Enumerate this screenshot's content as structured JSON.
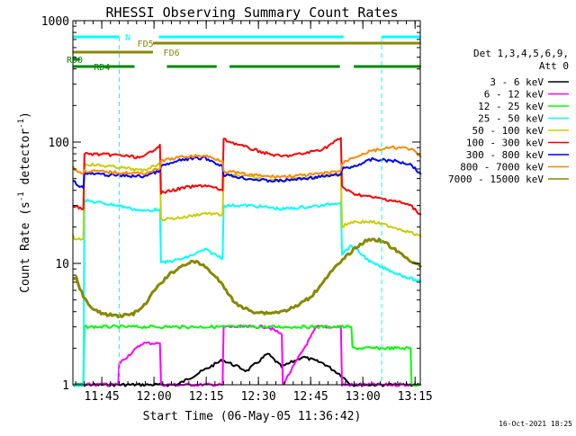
{
  "chart_data": {
    "type": "line",
    "title": "RHESSI Observing Summary Count Rates",
    "xlabel": "Start Time (06-May-05 11:36:42)",
    "ylabel": "Count Rate (s",
    "ylabel_sup": "-1",
    "ylabel_tail": " detector",
    "ylabel_sup2": "-1",
    "ylabel_close": ")",
    "yscale": "log",
    "ylim": [
      1,
      1000
    ],
    "xlim": [
      "11:36:42",
      "13:16:30"
    ],
    "y_ticks": [
      {
        "value": 1,
        "label": "1"
      },
      {
        "value": 10,
        "label": "10"
      },
      {
        "value": 100,
        "label": "100"
      },
      {
        "value": 1000,
        "label": "1000"
      }
    ],
    "x_ticks": [
      {
        "value": 8.3,
        "label": "11:45"
      },
      {
        "value": 23.3,
        "label": "12:00"
      },
      {
        "value": 38.3,
        "label": "12:15"
      },
      {
        "value": 53.3,
        "label": "12:30"
      },
      {
        "value": 68.3,
        "label": "12:45"
      },
      {
        "value": 83.3,
        "label": "13:00"
      },
      {
        "value": 98.3,
        "label": "13:15"
      }
    ],
    "legend": {
      "header": [
        "Det 1,3,4,5,6,9,",
        "Att 0"
      ],
      "position": "right"
    },
    "series": [
      {
        "name": "3 - 6 keV",
        "color": "#000000",
        "x": [
          0,
          3,
          3.3,
          20,
          30,
          43,
          50,
          56,
          60,
          66,
          72,
          77,
          80,
          80.3,
          100
        ],
        "y": [
          1,
          1,
          1,
          1,
          1,
          1.6,
          1.3,
          1.8,
          1.4,
          1.7,
          1.5,
          1.2,
          1,
          1,
          1
        ]
      },
      {
        "name": "6 - 12 keV",
        "color": "#ff00ff",
        "x": [
          0,
          3,
          13,
          13.3,
          20,
          25,
          25.3,
          30,
          43,
          43.3,
          56,
          60,
          60.3,
          70,
          77,
          77.3,
          100
        ],
        "y": [
          1,
          1,
          1,
          1.5,
          2.2,
          2.2,
          1,
          1,
          1,
          3,
          3,
          2.6,
          1,
          3,
          3,
          1,
          1
        ]
      },
      {
        "name": "12 - 25 keV",
        "color": "#00ff00",
        "x": [
          0,
          3,
          3.3,
          25,
          30,
          43,
          49,
          56,
          60,
          66,
          72,
          77,
          80,
          80.3,
          97,
          97.3,
          100
        ],
        "y": [
          1,
          1,
          3,
          3,
          3,
          3,
          3,
          3,
          3,
          3,
          3,
          3,
          3,
          2,
          2,
          1,
          1
        ]
      },
      {
        "name": "25 - 50 keV",
        "color": "#00ffff",
        "x": [
          0,
          3,
          3.3,
          13,
          20,
          25,
          25.3,
          32,
          38,
          43,
          43.3,
          50,
          56,
          60,
          66,
          72,
          77,
          77.3,
          80,
          86,
          92,
          97,
          100
        ],
        "y": [
          1,
          1,
          33,
          30,
          27,
          28,
          10,
          11,
          13,
          11,
          30,
          30,
          29,
          28,
          29,
          30,
          32,
          12,
          14,
          10,
          8.5,
          7.5,
          7
        ]
      },
      {
        "name": "50 - 100 keV",
        "color": "#cccc00",
        "x": [
          0,
          0.5,
          3,
          3.3,
          13,
          20,
          25,
          25.3,
          32,
          38,
          43,
          43.3,
          50,
          56,
          60,
          66,
          72,
          77,
          77.3,
          80,
          86,
          92,
          97,
          100
        ],
        "y": [
          17,
          16,
          16,
          66,
          62,
          58,
          67,
          23,
          24,
          26,
          25,
          53,
          52,
          49,
          48,
          50,
          52,
          55,
          20,
          22,
          22,
          20,
          18,
          16.5
        ]
      },
      {
        "name": "100 - 300 keV",
        "color": "#ff0000",
        "x": [
          0,
          3,
          3.3,
          13,
          20,
          25,
          25.3,
          32,
          38,
          43,
          43.3,
          50,
          56,
          60,
          66,
          72,
          77,
          77.3,
          80,
          86,
          92,
          97,
          100
        ],
        "y": [
          30,
          28,
          80,
          78,
          74,
          95,
          38,
          42,
          44,
          40,
          105,
          90,
          80,
          76,
          80,
          88,
          108,
          43,
          38,
          35,
          33,
          30,
          25
        ]
      },
      {
        "name": "300 - 800 keV",
        "color": "#0000ff",
        "x": [
          0,
          1,
          3,
          3.3,
          13,
          20,
          25,
          25.3,
          32,
          38,
          43,
          43.3,
          50,
          56,
          60,
          66,
          72,
          77,
          77.3,
          80,
          86,
          92,
          97,
          100
        ],
        "y": [
          49,
          45,
          42,
          55,
          53,
          52,
          58,
          63,
          72,
          74,
          63,
          54,
          50,
          48,
          48,
          50,
          52,
          54,
          60,
          62,
          72,
          70,
          66,
          54
        ]
      },
      {
        "name": "800 - 7000 keV",
        "color": "#ff8800",
        "x": [
          0,
          1,
          3,
          3.3,
          13,
          20,
          25,
          25.3,
          32,
          38,
          43,
          43.3,
          50,
          56,
          60,
          66,
          72,
          77,
          77.3,
          80,
          86,
          92,
          97,
          100
        ],
        "y": [
          62,
          58,
          55,
          58,
          56,
          55,
          60,
          70,
          76,
          77,
          70,
          58,
          54,
          52,
          52,
          53,
          55,
          58,
          66,
          74,
          85,
          90,
          88,
          75
        ]
      },
      {
        "name": "7000 - 15000 keV",
        "color": "#888800",
        "x": [
          0,
          1,
          2,
          3,
          5,
          9,
          13,
          17,
          20,
          22,
          24,
          26,
          28,
          30,
          32,
          34,
          36,
          38,
          40,
          42,
          44,
          46,
          48,
          52,
          56,
          60,
          64,
          68,
          70,
          72,
          74,
          76,
          78,
          80,
          82,
          84,
          86,
          88,
          90,
          92,
          94,
          96,
          98,
          100
        ],
        "y": [
          7.5,
          7.5,
          6.3,
          5.4,
          4.3,
          3.8,
          3.7,
          3.8,
          4.3,
          5.2,
          6.3,
          7.2,
          8.2,
          9.0,
          9.8,
          10.3,
          10.1,
          9.4,
          8.3,
          7.2,
          6.0,
          5.0,
          4.4,
          4.0,
          3.9,
          4.0,
          4.4,
          5.2,
          6.0,
          7.2,
          8.4,
          9.6,
          11.0,
          12.5,
          14,
          15.2,
          15.9,
          15.5,
          14.6,
          13.3,
          12.0,
          11.0,
          10.2,
          9.3
        ]
      }
    ],
    "annotations": [
      {
        "label": "N",
        "color": "#00ffff",
        "row": 0,
        "segments": [
          [
            0,
            13.3
          ],
          [
            24.7,
            77.7
          ],
          [
            88.7,
            100
          ]
        ],
        "text_at": 15,
        "dash_at": [
          13.3,
          88.7
        ],
        "dash_color": "#00ffff"
      },
      {
        "label": "FD5",
        "color": "#888800",
        "row": 1,
        "segments": [
          [
            23,
            100
          ]
        ],
        "text_at": 18.5
      },
      {
        "label": "FD6",
        "color": "#888800",
        "row": 2,
        "segments": [
          [
            0,
            23
          ]
        ],
        "text_at": 26
      },
      {
        "label": "RD0",
        "color": "#008800",
        "row": 3,
        "segments": [
          [
            0,
            2
          ]
        ],
        "text_at": -3
      },
      {
        "label": "RD4",
        "color": "#008800",
        "row": 4,
        "segments": [
          [
            0,
            17.7
          ],
          [
            27,
            41.3
          ],
          [
            45,
            76.7
          ],
          [
            80.7,
            100
          ]
        ],
        "text_at": 6
      }
    ],
    "grid": false
  },
  "footer_date": "16-Oct-2021 18:25"
}
